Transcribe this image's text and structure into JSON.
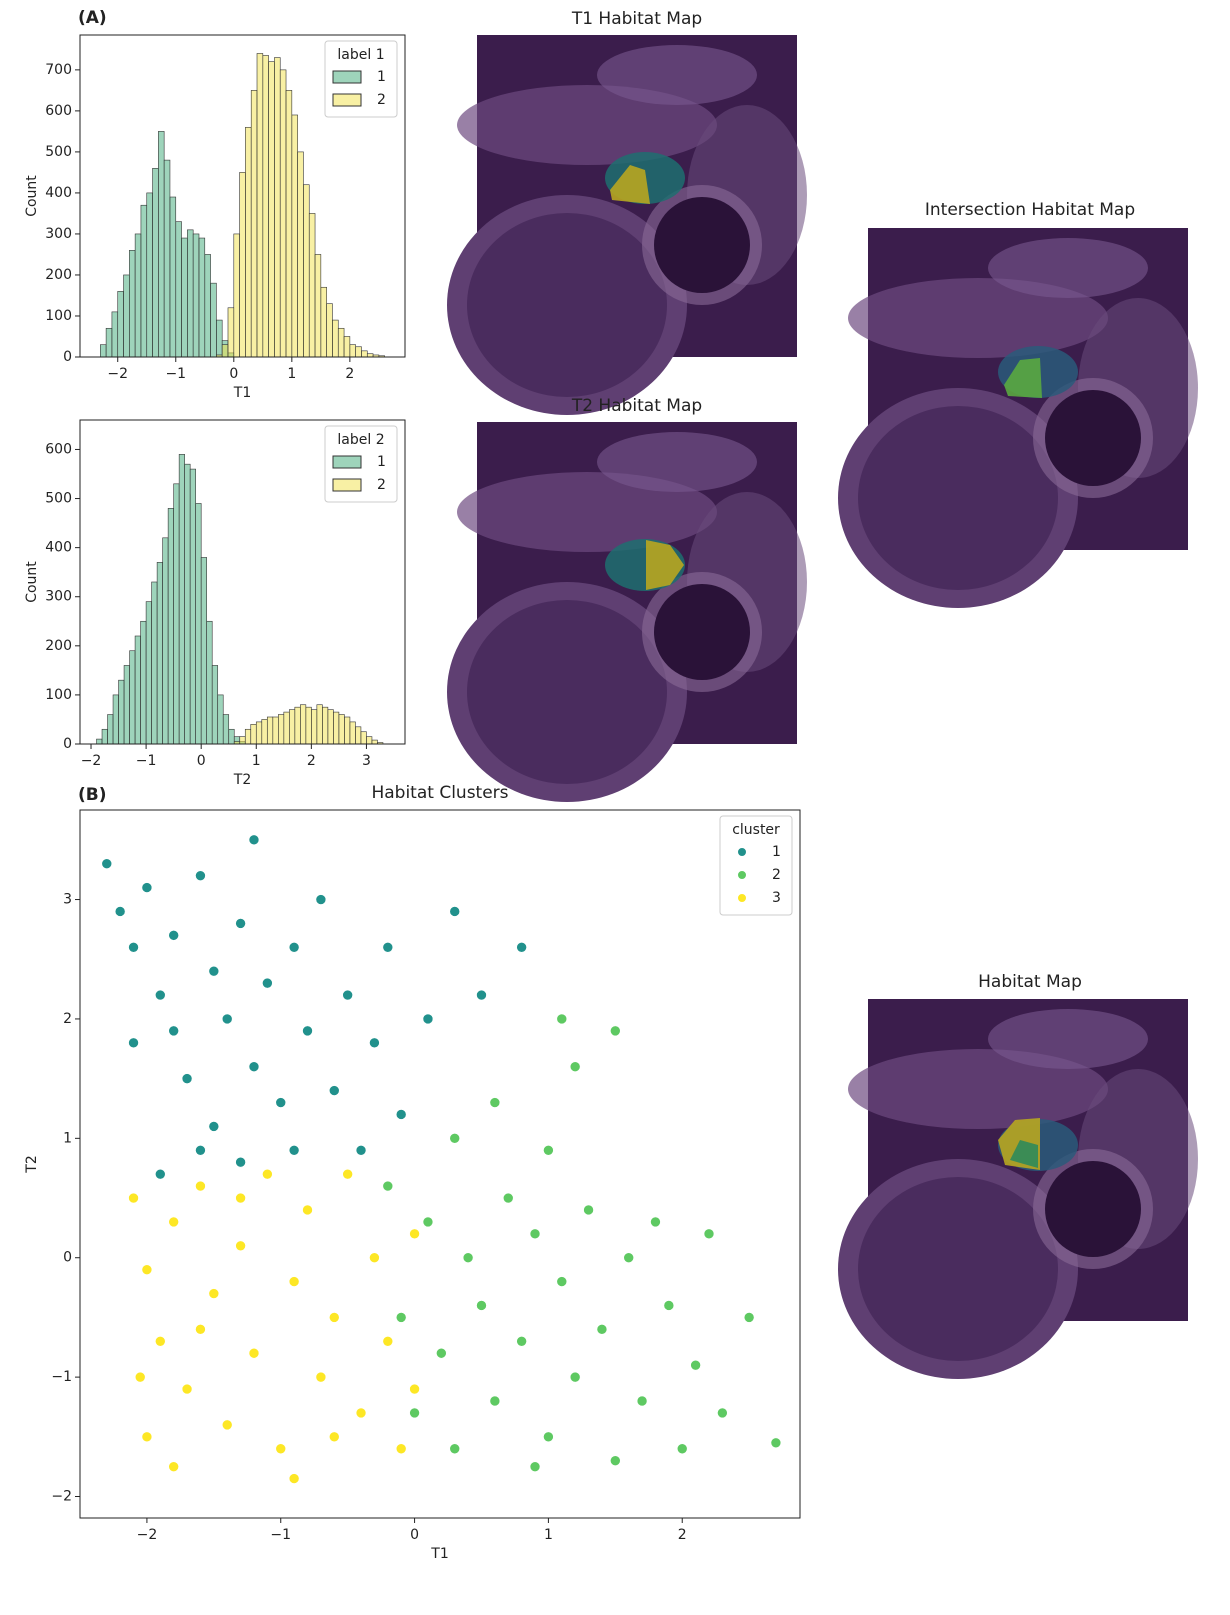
{
  "panel_labels": [
    "(A)",
    "(B)"
  ],
  "chart_data": [
    {
      "type": "histogram",
      "xlabel": "T1",
      "ylabel": "Count",
      "xlim": [
        -2.65,
        2.95
      ],
      "ylim": [
        0,
        785
      ],
      "xticks": [
        {
          "value": -2,
          "label": "−2"
        },
        {
          "value": -1,
          "label": "−1"
        },
        0,
        1,
        2
      ],
      "yticks": [
        0,
        100,
        200,
        300,
        400,
        500,
        600,
        700
      ],
      "legend_title": "label 1",
      "legend": "upper right",
      "series": [
        {
          "name": "1",
          "color": "#3daa78",
          "bins": [
            -2.3,
            -2.2,
            -2.1,
            -2.0,
            -1.9,
            -1.8,
            -1.7,
            -1.6,
            -1.5,
            -1.4,
            -1.3,
            -1.2,
            -1.1,
            -1.0,
            -0.9,
            -0.8,
            -0.7,
            -0.6,
            -0.5,
            -0.4,
            -0.3,
            -0.2,
            -0.1,
            0.0
          ],
          "values": [
            30,
            70,
            110,
            160,
            200,
            260,
            300,
            370,
            400,
            460,
            550,
            480,
            390,
            330,
            290,
            310,
            300,
            290,
            250,
            180,
            90,
            40,
            10
          ]
        },
        {
          "name": "2",
          "color": "#f2e24a",
          "bins": [
            -0.3,
            -0.2,
            -0.1,
            0.0,
            0.1,
            0.2,
            0.3,
            0.4,
            0.5,
            0.6,
            0.7,
            0.8,
            0.9,
            1.0,
            1.1,
            1.2,
            1.3,
            1.4,
            1.5,
            1.6,
            1.7,
            1.8,
            1.9,
            2.0,
            2.1,
            2.2,
            2.3,
            2.4,
            2.5,
            2.6
          ],
          "values": [
            5,
            30,
            120,
            300,
            450,
            560,
            650,
            740,
            735,
            720,
            730,
            700,
            650,
            590,
            500,
            420,
            350,
            250,
            170,
            130,
            90,
            70,
            50,
            30,
            25,
            15,
            8,
            5,
            3
          ]
        }
      ]
    },
    {
      "type": "histogram",
      "xlabel": "T2",
      "ylabel": "Count",
      "xlim": [
        -2.2,
        3.7
      ],
      "ylim": [
        0,
        660
      ],
      "xticks": [
        {
          "value": -2,
          "label": "−2"
        },
        {
          "value": -1,
          "label": "−1"
        },
        0,
        1,
        2,
        3
      ],
      "yticks": [
        0,
        100,
        200,
        300,
        400,
        500,
        600
      ],
      "legend_title": "label 2",
      "legend": "upper right",
      "series": [
        {
          "name": "1",
          "color": "#3daa78",
          "bins": [
            -1.9,
            -1.8,
            -1.7,
            -1.6,
            -1.5,
            -1.4,
            -1.3,
            -1.2,
            -1.1,
            -1.0,
            -0.9,
            -0.8,
            -0.7,
            -0.6,
            -0.5,
            -0.4,
            -0.3,
            -0.2,
            -0.1,
            0.0,
            0.1,
            0.2,
            0.3,
            0.4,
            0.5,
            0.6,
            0.7,
            0.8
          ],
          "values": [
            10,
            30,
            60,
            100,
            130,
            160,
            190,
            220,
            250,
            290,
            330,
            370,
            420,
            480,
            530,
            590,
            570,
            560,
            490,
            380,
            250,
            160,
            100,
            60,
            30,
            15,
            5
          ]
        },
        {
          "name": "2",
          "color": "#f2e24a",
          "bins": [
            0.6,
            0.7,
            0.8,
            0.9,
            1.0,
            1.1,
            1.2,
            1.3,
            1.4,
            1.5,
            1.6,
            1.7,
            1.8,
            1.9,
            2.0,
            2.1,
            2.2,
            2.3,
            2.4,
            2.5,
            2.6,
            2.7,
            2.8,
            2.9,
            3.0,
            3.1,
            3.2,
            3.3
          ],
          "values": [
            5,
            15,
            30,
            40,
            45,
            50,
            55,
            55,
            60,
            65,
            70,
            75,
            80,
            75,
            70,
            80,
            75,
            70,
            65,
            60,
            55,
            45,
            35,
            25,
            15,
            8,
            3
          ]
        }
      ]
    },
    {
      "type": "scatter",
      "title": "Habitat Clusters",
      "xlabel": "T1",
      "ylabel": "T2",
      "xlim": [
        -2.5,
        2.88
      ],
      "ylim": [
        -2.18,
        3.75
      ],
      "xticks": [
        {
          "value": -2,
          "label": "−2"
        },
        {
          "value": -1,
          "label": "−1"
        },
        0,
        1,
        2
      ],
      "yticks": [
        {
          "value": -2,
          "label": "−2"
        },
        {
          "value": -1,
          "label": "−1"
        },
        0,
        1,
        2,
        3
      ],
      "legend_title": "cluster",
      "legend": "upper right",
      "series": [
        {
          "name": "1",
          "color": "#21918c",
          "x": [
            -2.3,
            -2.2,
            -2.1,
            -2.0,
            -1.9,
            -1.8,
            -1.8,
            -1.7,
            -1.6,
            -1.5,
            -1.5,
            -1.4,
            -1.3,
            -1.3,
            -1.2,
            -1.2,
            -1.1,
            -1.0,
            -0.9,
            -0.9,
            -0.8,
            -0.7,
            -0.6,
            -0.5,
            -0.4,
            -0.3,
            -0.2,
            -0.1,
            0.1,
            0.3,
            0.5,
            0.8,
            -1.9,
            -2.1,
            -1.6
          ],
          "y": [
            3.3,
            2.9,
            2.6,
            3.1,
            2.2,
            1.9,
            2.7,
            1.5,
            3.2,
            2.4,
            1.1,
            2.0,
            2.8,
            0.8,
            1.6,
            3.5,
            2.3,
            1.3,
            2.6,
            0.9,
            1.9,
            3.0,
            1.4,
            2.2,
            0.9,
            1.8,
            2.6,
            1.2,
            2.0,
            2.9,
            2.2,
            2.6,
            0.7,
            1.8,
            0.9
          ]
        },
        {
          "name": "2",
          "color": "#5ec962",
          "x": [
            -0.2,
            -0.1,
            0.0,
            0.1,
            0.2,
            0.3,
            0.3,
            0.4,
            0.5,
            0.6,
            0.6,
            0.7,
            0.8,
            0.9,
            1.0,
            1.0,
            1.1,
            1.2,
            1.2,
            1.3,
            1.4,
            1.5,
            1.5,
            1.6,
            1.7,
            1.8,
            1.9,
            2.0,
            2.1,
            2.2,
            2.3,
            2.5,
            2.7,
            1.1,
            0.9
          ],
          "y": [
            0.6,
            -0.5,
            -1.3,
            0.3,
            -0.8,
            1.0,
            -1.6,
            0.0,
            -0.4,
            1.3,
            -1.2,
            0.5,
            -0.7,
            0.2,
            -1.5,
            0.9,
            -0.2,
            1.6,
            -1.0,
            0.4,
            -0.6,
            -1.7,
            1.9,
            0.0,
            -1.2,
            0.3,
            -0.4,
            -1.6,
            -0.9,
            0.2,
            -1.3,
            -0.5,
            -1.55,
            2.0,
            -1.75
          ]
        },
        {
          "name": "3",
          "color": "#fde725",
          "x": [
            -2.1,
            -2.0,
            -2.0,
            -1.9,
            -1.8,
            -1.8,
            -1.7,
            -1.6,
            -1.5,
            -1.4,
            -1.3,
            -1.2,
            -1.1,
            -1.0,
            -0.9,
            -0.9,
            -0.8,
            -0.7,
            -0.6,
            -0.5,
            -0.4,
            -0.3,
            -0.2,
            -0.1,
            0.0,
            0.0,
            -1.6,
            -1.3,
            -0.6,
            -2.05
          ],
          "y": [
            0.5,
            -0.1,
            -1.5,
            -0.7,
            0.3,
            -1.75,
            -1.1,
            0.6,
            -0.3,
            -1.4,
            0.1,
            -0.8,
            0.7,
            -1.6,
            -0.2,
            -1.85,
            0.4,
            -1.0,
            -0.5,
            0.7,
            -1.3,
            0.0,
            -0.7,
            -1.6,
            0.2,
            -1.1,
            -0.6,
            0.5,
            -1.5,
            -1.0
          ]
        }
      ]
    }
  ],
  "images": [
    {
      "title": "T1 Habitat Map"
    },
    {
      "title": "T2 Habitat Map"
    },
    {
      "title": "Intersection Habitat Map"
    },
    {
      "title": "Habitat Map"
    }
  ]
}
